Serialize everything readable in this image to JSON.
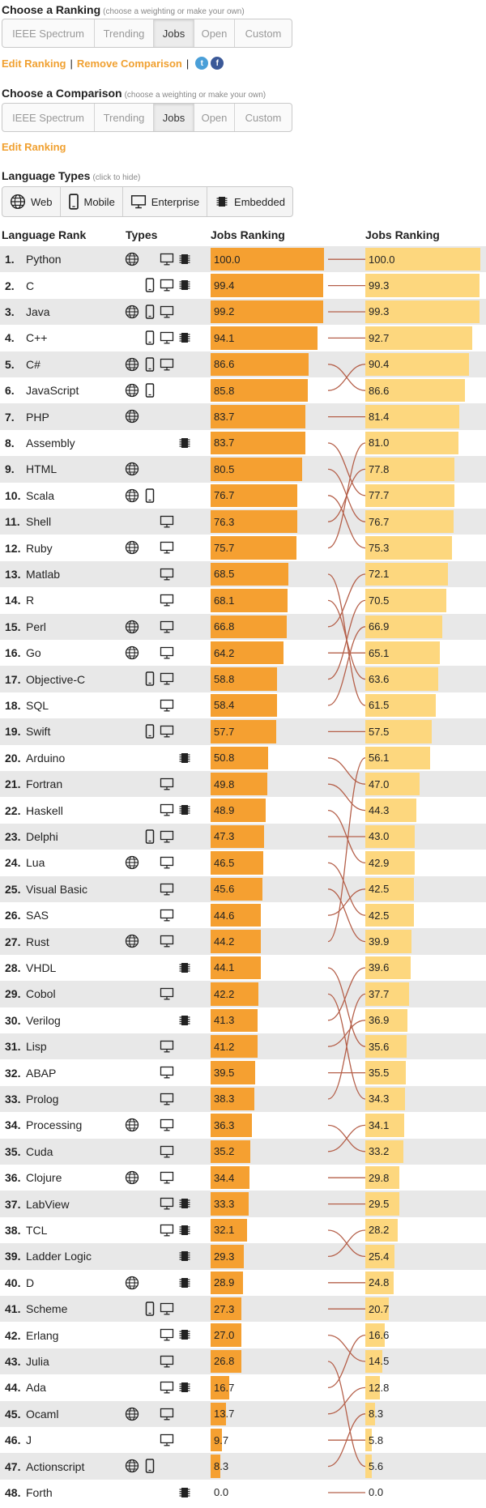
{
  "ranking": {
    "title": "Choose a Ranking",
    "hint": "(choose a weighting or make your own)",
    "options": [
      "IEEE Spectrum",
      "Trending",
      "Jobs",
      "Open",
      "Custom"
    ],
    "selected": "Jobs",
    "edit_link": "Edit Ranking",
    "remove_link": "Remove Comparison",
    "separator": "|"
  },
  "comparison": {
    "title": "Choose a Comparison",
    "hint": "(choose a weighting or make your own)",
    "options": [
      "IEEE Spectrum",
      "Trending",
      "Jobs",
      "Open",
      "Custom"
    ],
    "selected": "Jobs",
    "edit_link": "Edit Ranking"
  },
  "language_types": {
    "title": "Language Types",
    "hint": "(click to hide)",
    "buttons": [
      {
        "label": "Web",
        "icon": "globe-icon"
      },
      {
        "label": "Mobile",
        "icon": "mobile-icon"
      },
      {
        "label": "Enterprise",
        "icon": "monitor-icon"
      },
      {
        "label": "Embedded",
        "icon": "chip-icon"
      }
    ]
  },
  "table": {
    "col_rank": "Language Rank",
    "col_types": "Types",
    "col_left": "Jobs Ranking",
    "col_right": "Jobs Ranking"
  },
  "colors": {
    "bar_left": "#f5a031",
    "bar_right": "#fdd77e",
    "link": "#f0a030",
    "connector": "#b5604a"
  },
  "rows": [
    {
      "rank": "1.",
      "name": "Python",
      "types": [
        "web",
        "enterprise",
        "embedded"
      ],
      "left": "100.0",
      "right": "100.0"
    },
    {
      "rank": "2.",
      "name": "C",
      "types": [
        "mobile",
        "enterprise",
        "embedded"
      ],
      "left": "99.4",
      "right": "99.3"
    },
    {
      "rank": "3.",
      "name": "Java",
      "types": [
        "web",
        "mobile",
        "enterprise"
      ],
      "left": "99.2",
      "right": "99.3"
    },
    {
      "rank": "4.",
      "name": "C++",
      "types": [
        "mobile",
        "enterprise",
        "embedded"
      ],
      "left": "94.1",
      "right": "92.7"
    },
    {
      "rank": "5.",
      "name": "C#",
      "types": [
        "web",
        "mobile",
        "enterprise"
      ],
      "left": "86.6",
      "right": "90.4"
    },
    {
      "rank": "6.",
      "name": "JavaScript",
      "types": [
        "web",
        "mobile"
      ],
      "left": "85.8",
      "right": "86.6"
    },
    {
      "rank": "7.",
      "name": "PHP",
      "types": [
        "web"
      ],
      "left": "83.7",
      "right": "81.4"
    },
    {
      "rank": "8.",
      "name": "Assembly",
      "types": [
        "embedded"
      ],
      "left": "83.7",
      "right": "81.0"
    },
    {
      "rank": "9.",
      "name": "HTML",
      "types": [
        "web"
      ],
      "left": "80.5",
      "right": "77.8"
    },
    {
      "rank": "10.",
      "name": "Scala",
      "types": [
        "web",
        "mobile"
      ],
      "left": "76.7",
      "right": "77.7"
    },
    {
      "rank": "11.",
      "name": "Shell",
      "types": [
        "enterprise"
      ],
      "left": "76.3",
      "right": "76.7"
    },
    {
      "rank": "12.",
      "name": "Ruby",
      "types": [
        "web",
        "enterprise"
      ],
      "left": "75.7",
      "right": "75.3"
    },
    {
      "rank": "13.",
      "name": "Matlab",
      "types": [
        "enterprise"
      ],
      "left": "68.5",
      "right": "72.1"
    },
    {
      "rank": "14.",
      "name": "R",
      "types": [
        "enterprise"
      ],
      "left": "68.1",
      "right": "70.5"
    },
    {
      "rank": "15.",
      "name": "Perl",
      "types": [
        "web",
        "enterprise"
      ],
      "left": "66.8",
      "right": "66.9"
    },
    {
      "rank": "16.",
      "name": "Go",
      "types": [
        "web",
        "enterprise"
      ],
      "left": "64.2",
      "right": "65.1"
    },
    {
      "rank": "17.",
      "name": "Objective-C",
      "types": [
        "mobile",
        "enterprise"
      ],
      "left": "58.8",
      "right": "63.6"
    },
    {
      "rank": "18.",
      "name": "SQL",
      "types": [
        "enterprise"
      ],
      "left": "58.4",
      "right": "61.5"
    },
    {
      "rank": "19.",
      "name": "Swift",
      "types": [
        "mobile",
        "enterprise"
      ],
      "left": "57.7",
      "right": "57.5"
    },
    {
      "rank": "20.",
      "name": "Arduino",
      "types": [
        "embedded"
      ],
      "left": "50.8",
      "right": "56.1"
    },
    {
      "rank": "21.",
      "name": "Fortran",
      "types": [
        "enterprise"
      ],
      "left": "49.8",
      "right": "47.0"
    },
    {
      "rank": "22.",
      "name": "Haskell",
      "types": [
        "enterprise",
        "embedded"
      ],
      "left": "48.9",
      "right": "44.3"
    },
    {
      "rank": "23.",
      "name": "Delphi",
      "types": [
        "mobile",
        "enterprise"
      ],
      "left": "47.3",
      "right": "43.0"
    },
    {
      "rank": "24.",
      "name": "Lua",
      "types": [
        "web",
        "enterprise"
      ],
      "left": "46.5",
      "right": "42.9"
    },
    {
      "rank": "25.",
      "name": "Visual Basic",
      "types": [
        "enterprise"
      ],
      "left": "45.6",
      "right": "42.5"
    },
    {
      "rank": "26.",
      "name": "SAS",
      "types": [
        "enterprise"
      ],
      "left": "44.6",
      "right": "42.5"
    },
    {
      "rank": "27.",
      "name": "Rust",
      "types": [
        "web",
        "enterprise"
      ],
      "left": "44.2",
      "right": "39.9"
    },
    {
      "rank": "28.",
      "name": "VHDL",
      "types": [
        "embedded"
      ],
      "left": "44.1",
      "right": "39.6"
    },
    {
      "rank": "29.",
      "name": "Cobol",
      "types": [
        "enterprise"
      ],
      "left": "42.2",
      "right": "37.7"
    },
    {
      "rank": "30.",
      "name": "Verilog",
      "types": [
        "embedded"
      ],
      "left": "41.3",
      "right": "36.9"
    },
    {
      "rank": "31.",
      "name": "Lisp",
      "types": [
        "enterprise"
      ],
      "left": "41.2",
      "right": "35.6"
    },
    {
      "rank": "32.",
      "name": "ABAP",
      "types": [
        "enterprise"
      ],
      "left": "39.5",
      "right": "35.5"
    },
    {
      "rank": "33.",
      "name": "Prolog",
      "types": [
        "enterprise"
      ],
      "left": "38.3",
      "right": "34.3"
    },
    {
      "rank": "34.",
      "name": "Processing",
      "types": [
        "web",
        "enterprise"
      ],
      "left": "36.3",
      "right": "34.1"
    },
    {
      "rank": "35.",
      "name": "Cuda",
      "types": [
        "enterprise"
      ],
      "left": "35.2",
      "right": "33.2"
    },
    {
      "rank": "36.",
      "name": "Clojure",
      "types": [
        "web",
        "enterprise"
      ],
      "left": "34.4",
      "right": "29.8"
    },
    {
      "rank": "37.",
      "name": "LabView",
      "types": [
        "enterprise",
        "embedded"
      ],
      "left": "33.3",
      "right": "29.5"
    },
    {
      "rank": "38.",
      "name": "TCL",
      "types": [
        "enterprise",
        "embedded"
      ],
      "left": "32.1",
      "right": "28.2"
    },
    {
      "rank": "39.",
      "name": "Ladder Logic",
      "types": [
        "embedded"
      ],
      "left": "29.3",
      "right": "25.4"
    },
    {
      "rank": "40.",
      "name": "D",
      "types": [
        "web",
        "embedded"
      ],
      "left": "28.9",
      "right": "24.8"
    },
    {
      "rank": "41.",
      "name": "Scheme",
      "types": [
        "mobile",
        "enterprise"
      ],
      "left": "27.3",
      "right": "20.7"
    },
    {
      "rank": "42.",
      "name": "Erlang",
      "types": [
        "enterprise",
        "embedded"
      ],
      "left": "27.0",
      "right": "16.6"
    },
    {
      "rank": "43.",
      "name": "Julia",
      "types": [
        "enterprise"
      ],
      "left": "26.8",
      "right": "14.5"
    },
    {
      "rank": "44.",
      "name": "Ada",
      "types": [
        "enterprise",
        "embedded"
      ],
      "left": "16.7",
      "right": "12.8"
    },
    {
      "rank": "45.",
      "name": "Ocaml",
      "types": [
        "web",
        "enterprise"
      ],
      "left": "13.7",
      "right": "8.3"
    },
    {
      "rank": "46.",
      "name": "J",
      "types": [
        "enterprise"
      ],
      "left": "9.7",
      "right": "5.8"
    },
    {
      "rank": "47.",
      "name": "Actionscript",
      "types": [
        "web",
        "mobile"
      ],
      "left": "8.3",
      "right": "5.6"
    },
    {
      "rank": "48.",
      "name": "Forth",
      "types": [
        "embedded"
      ],
      "left": "0.0",
      "right": "0.0"
    }
  ],
  "connections": [
    1,
    2,
    3,
    4,
    6,
    5,
    7,
    10,
    11,
    12,
    9,
    8,
    18,
    17,
    13,
    16,
    14,
    15,
    19,
    21,
    22,
    24,
    23,
    26,
    27,
    25,
    20,
    31,
    33,
    28,
    30,
    32,
    29,
    35,
    34,
    36,
    37,
    39,
    38,
    40,
    41,
    43,
    47,
    42,
    44,
    46,
    45,
    48
  ]
}
